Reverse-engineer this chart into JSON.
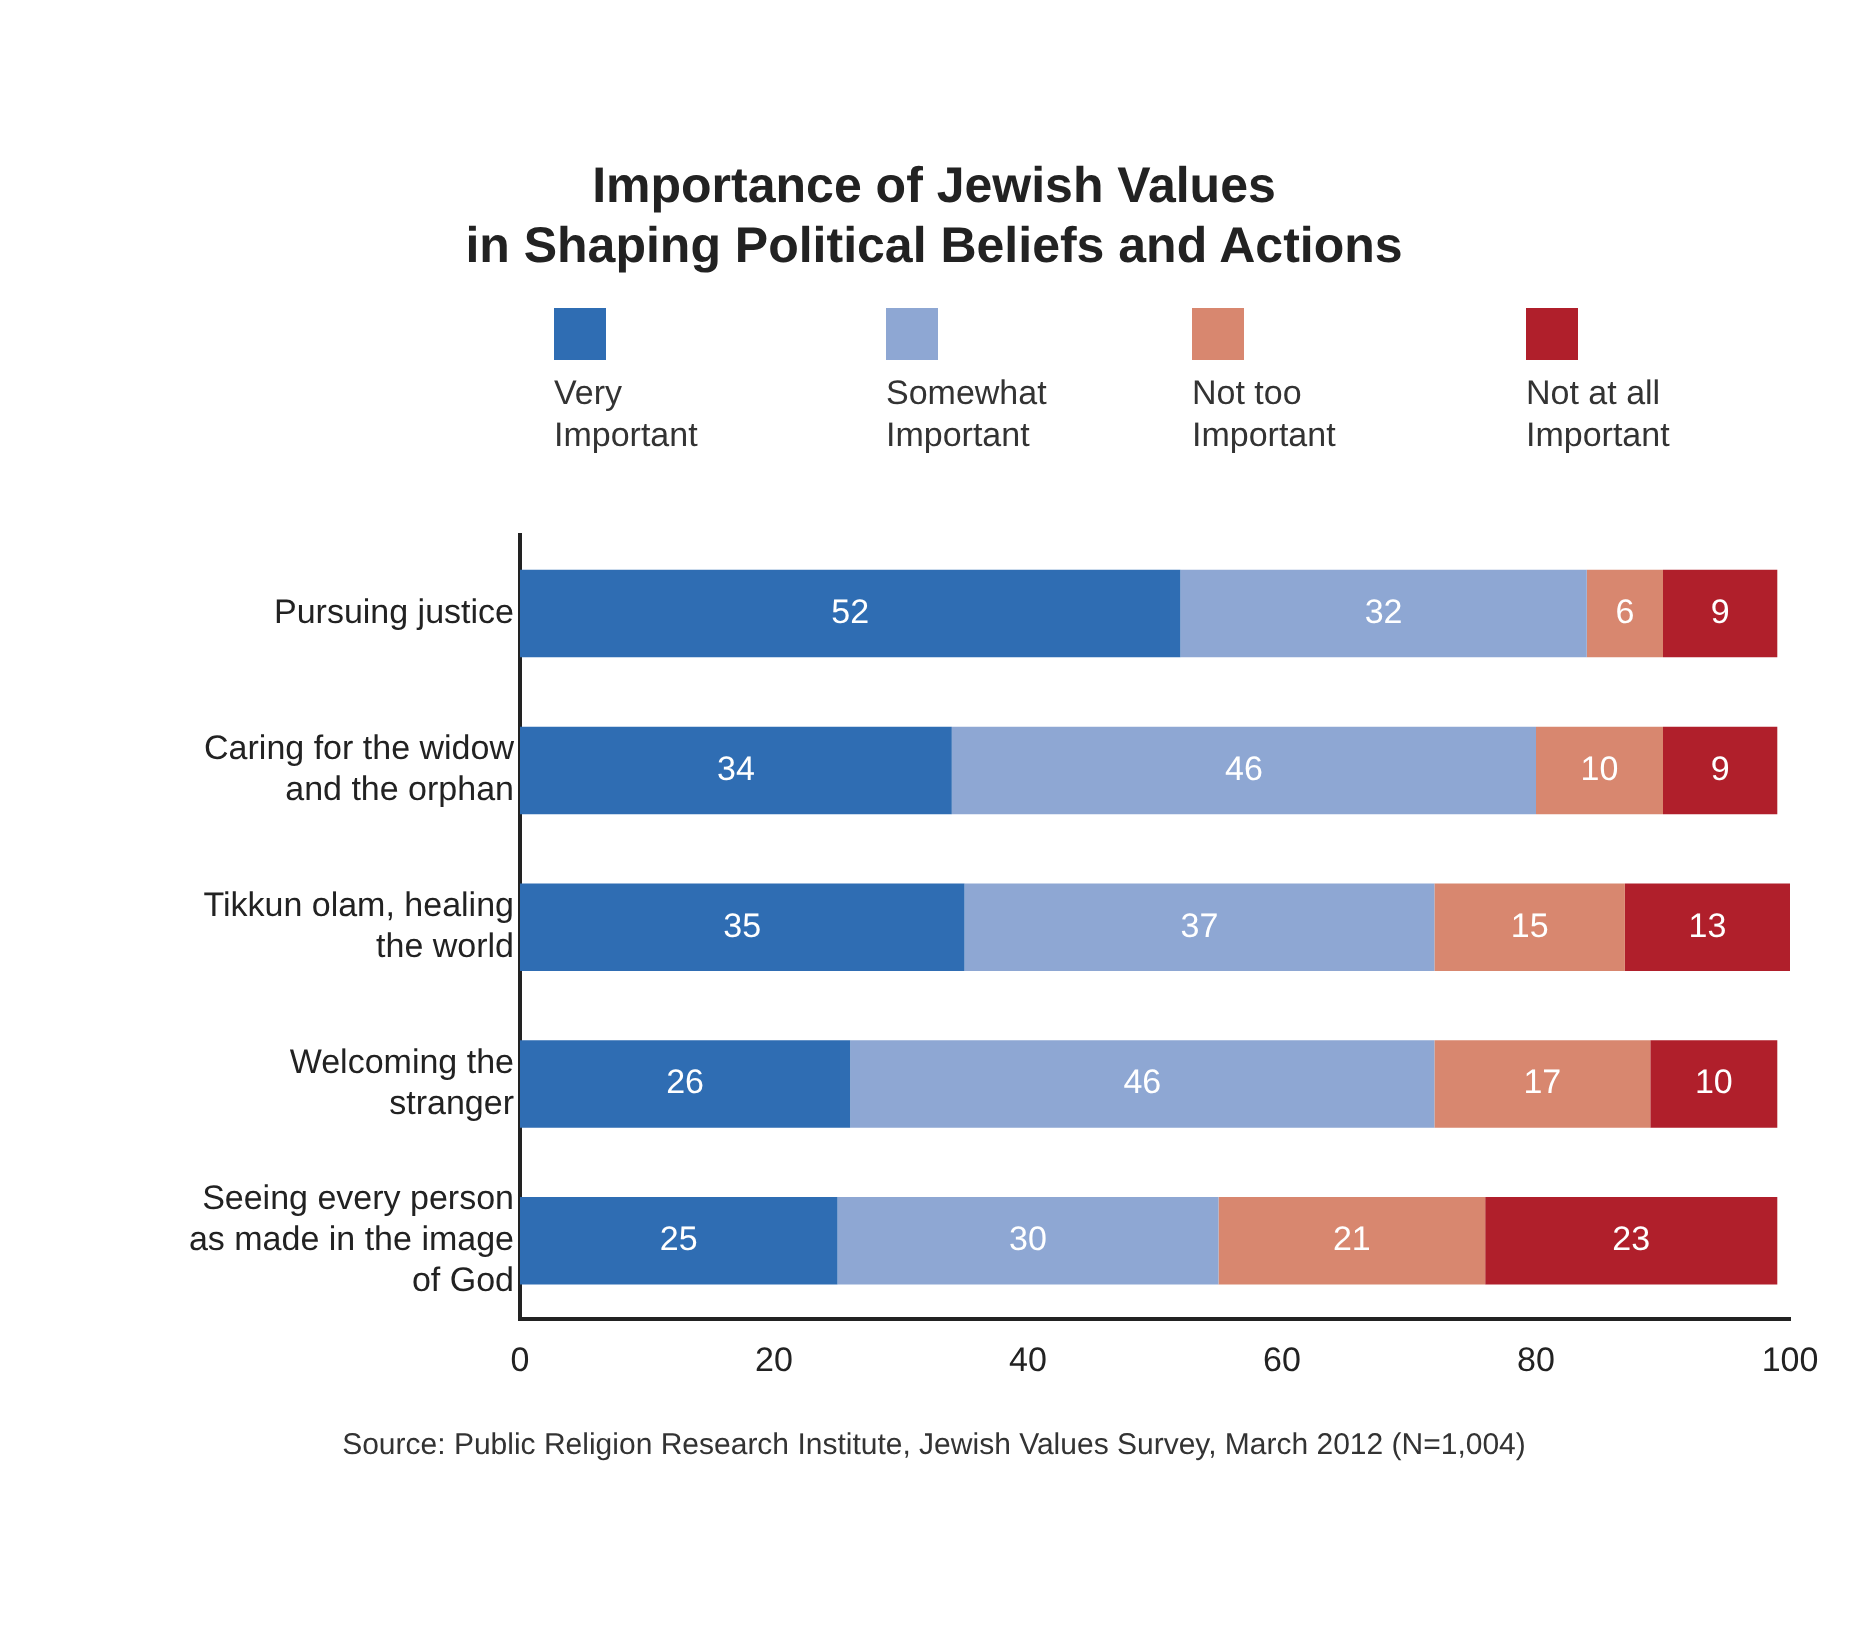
{
  "chart_data": {
    "type": "bar",
    "orientation": "horizontal",
    "stacked": true,
    "title": "Importance of Jewish Values\nin Shaping Political Beliefs and Actions",
    "categories": [
      "Pursuing justice",
      "Caring for the widow and the orphan",
      "Tikkun olam, healing the world",
      "Welcoming the stranger",
      "Seeing every person as made in the image of God"
    ],
    "series": [
      {
        "name": "Very Important",
        "color": "#2f6db3",
        "values": [
          52,
          34,
          35,
          26,
          25
        ]
      },
      {
        "name": "Somewhat Important",
        "color": "#8ea7d3",
        "values": [
          32,
          46,
          37,
          46,
          30
        ]
      },
      {
        "name": "Not too Important",
        "color": "#d8876f",
        "values": [
          6,
          10,
          15,
          17,
          21
        ]
      },
      {
        "name": "Not at all Important",
        "color": "#b01f2b",
        "values": [
          9,
          9,
          13,
          10,
          23
        ]
      }
    ],
    "xlim": [
      0,
      100
    ],
    "xticks": [
      0,
      20,
      40,
      60,
      80,
      100
    ],
    "grid": false,
    "legend": "top",
    "data_labels": true,
    "annotations": [
      "Source: Public Religion Research Institute, Jewish Values Survey, March 2012 (N=1,004)"
    ]
  }
}
